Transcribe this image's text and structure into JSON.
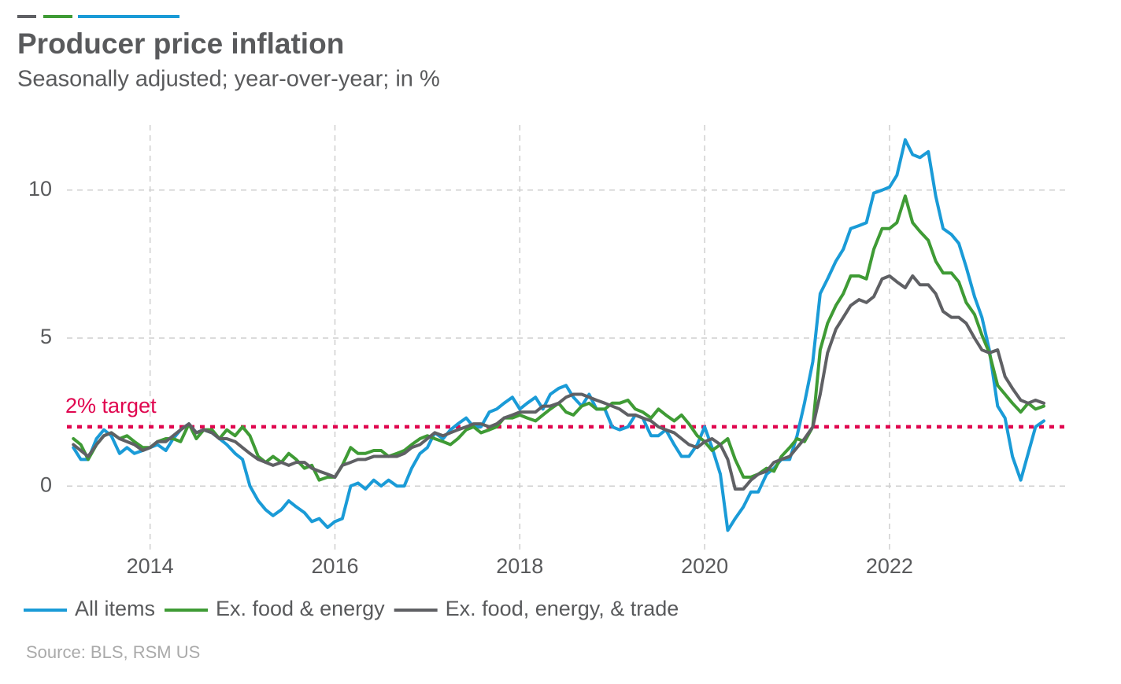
{
  "chart_data": {
    "type": "line",
    "title": "Producer price inflation",
    "subtitle": "Seasonally adjusted; year-over-year; in %",
    "source": "Source: BLS, RSM US",
    "legend": "bottom",
    "grid": true,
    "xlim": [
      2013.1,
      2023.9
    ],
    "xticks": [
      2014,
      2016,
      2018,
      2020,
      2022
    ],
    "ylim": [
      -2.2,
      12.2
    ],
    "yticks": [
      0,
      5,
      10
    ],
    "reference_line": {
      "value": 2,
      "label": "2% target",
      "color": "#e0064f"
    },
    "x": [
      2013.17,
      2013.25,
      2013.33,
      2013.42,
      2013.5,
      2013.58,
      2013.67,
      2013.75,
      2013.83,
      2013.92,
      2014.0,
      2014.08,
      2014.17,
      2014.25,
      2014.33,
      2014.42,
      2014.5,
      2014.58,
      2014.67,
      2014.75,
      2014.83,
      2014.92,
      2015.0,
      2015.08,
      2015.17,
      2015.25,
      2015.33,
      2015.42,
      2015.5,
      2015.58,
      2015.67,
      2015.75,
      2015.83,
      2015.92,
      2016.0,
      2016.08,
      2016.17,
      2016.25,
      2016.33,
      2016.42,
      2016.5,
      2016.58,
      2016.67,
      2016.75,
      2016.83,
      2016.92,
      2017.0,
      2017.08,
      2017.17,
      2017.25,
      2017.33,
      2017.42,
      2017.5,
      2017.58,
      2017.67,
      2017.75,
      2017.83,
      2017.92,
      2018.0,
      2018.08,
      2018.17,
      2018.25,
      2018.33,
      2018.42,
      2018.5,
      2018.58,
      2018.67,
      2018.75,
      2018.83,
      2018.92,
      2019.0,
      2019.08,
      2019.17,
      2019.25,
      2019.33,
      2019.42,
      2019.5,
      2019.58,
      2019.67,
      2019.75,
      2019.83,
      2019.92,
      2020.0,
      2020.08,
      2020.17,
      2020.25,
      2020.33,
      2020.42,
      2020.5,
      2020.58,
      2020.67,
      2020.75,
      2020.83,
      2020.92,
      2021.0,
      2021.08,
      2021.17,
      2021.25,
      2021.33,
      2021.42,
      2021.5,
      2021.58,
      2021.67,
      2021.75,
      2021.83,
      2021.92,
      2022.0,
      2022.08,
      2022.17,
      2022.25,
      2022.33,
      2022.42,
      2022.5,
      2022.58,
      2022.67,
      2022.75,
      2022.83,
      2022.92,
      2023.0,
      2023.08,
      2023.17,
      2023.25,
      2023.33,
      2023.42,
      2023.5,
      2023.58,
      2023.67
    ],
    "series": [
      {
        "name": "All items",
        "color": "#1a9bd7",
        "values": [
          1.3,
          0.9,
          0.9,
          1.6,
          1.9,
          1.7,
          1.1,
          1.3,
          1.1,
          1.2,
          1.3,
          1.4,
          1.2,
          1.6,
          1.9,
          2.1,
          1.8,
          1.9,
          1.8,
          1.6,
          1.4,
          1.1,
          0.9,
          0.0,
          -0.5,
          -0.8,
          -1.0,
          -0.8,
          -0.5,
          -0.7,
          -0.9,
          -1.2,
          -1.1,
          -1.4,
          -1.2,
          -1.1,
          0.0,
          0.1,
          -0.1,
          0.2,
          0.0,
          0.2,
          0.0,
          0.0,
          0.6,
          1.1,
          1.3,
          1.8,
          1.6,
          1.9,
          2.1,
          2.3,
          2.0,
          2.0,
          2.5,
          2.6,
          2.8,
          3.0,
          2.6,
          2.8,
          3.0,
          2.6,
          3.1,
          3.3,
          3.4,
          3.0,
          2.7,
          3.1,
          2.6,
          2.6,
          2.0,
          1.9,
          2.0,
          2.4,
          2.3,
          1.7,
          1.7,
          1.9,
          1.4,
          1.0,
          1.0,
          1.4,
          2.0,
          1.3,
          0.4,
          -1.5,
          -1.1,
          -0.7,
          -0.2,
          -0.2,
          0.4,
          0.6,
          0.9,
          0.9,
          1.7,
          2.8,
          4.2,
          6.5,
          7.0,
          7.6,
          8.0,
          8.7,
          8.8,
          8.9,
          9.9,
          10.0,
          10.1,
          10.5,
          11.7,
          11.2,
          11.1,
          11.3,
          9.8,
          8.7,
          8.5,
          8.2,
          7.4,
          6.4,
          5.7,
          4.6,
          2.7,
          2.3,
          1.0,
          0.2,
          1.1,
          2.0,
          2.2
        ]
      },
      {
        "name": "Ex. food & energy",
        "color": "#3f9b35",
        "values": [
          1.6,
          1.4,
          0.9,
          1.4,
          1.7,
          1.8,
          1.6,
          1.7,
          1.5,
          1.3,
          1.3,
          1.5,
          1.6,
          1.6,
          1.5,
          2.1,
          1.6,
          1.9,
          1.9,
          1.6,
          1.9,
          1.7,
          2.0,
          1.7,
          1.0,
          0.8,
          1.0,
          0.8,
          1.1,
          0.9,
          0.6,
          0.7,
          0.2,
          0.3,
          0.3,
          0.7,
          1.3,
          1.1,
          1.1,
          1.2,
          1.2,
          1.0,
          1.1,
          1.2,
          1.4,
          1.6,
          1.7,
          1.6,
          1.5,
          1.4,
          1.6,
          1.9,
          2.0,
          1.8,
          1.9,
          2.0,
          2.3,
          2.3,
          2.4,
          2.3,
          2.2,
          2.4,
          2.6,
          2.8,
          2.5,
          2.4,
          2.7,
          2.8,
          2.6,
          2.6,
          2.8,
          2.8,
          2.9,
          2.6,
          2.5,
          2.3,
          2.6,
          2.4,
          2.2,
          2.4,
          2.1,
          1.7,
          1.5,
          1.2,
          1.4,
          1.6,
          0.9,
          0.3,
          0.3,
          0.4,
          0.6,
          0.5,
          1.0,
          1.3,
          1.6,
          1.5,
          2.0,
          4.6,
          5.5,
          6.1,
          6.5,
          7.1,
          7.1,
          7.0,
          8.0,
          8.7,
          8.7,
          8.9,
          9.8,
          8.9,
          8.6,
          8.3,
          7.6,
          7.2,
          7.2,
          6.9,
          6.2,
          5.8,
          5.1,
          4.5,
          3.4,
          3.1,
          2.8,
          2.5,
          2.8,
          2.6,
          2.7
        ]
      },
      {
        "name": "Ex. food, energy, & trade",
        "color": "#5f6064",
        "values": [
          1.4,
          1.2,
          1.0,
          1.4,
          1.7,
          1.8,
          1.6,
          1.5,
          1.4,
          1.2,
          1.3,
          1.5,
          1.5,
          1.7,
          1.9,
          2.1,
          1.8,
          1.9,
          1.8,
          1.6,
          1.6,
          1.5,
          1.3,
          1.1,
          0.9,
          0.8,
          0.7,
          0.8,
          0.7,
          0.8,
          0.8,
          0.6,
          0.5,
          0.4,
          0.3,
          0.7,
          0.8,
          0.9,
          0.9,
          1.0,
          1.0,
          1.0,
          1.0,
          1.1,
          1.3,
          1.4,
          1.6,
          1.8,
          1.7,
          1.8,
          1.9,
          2.0,
          2.1,
          2.1,
          2.0,
          2.1,
          2.3,
          2.4,
          2.5,
          2.5,
          2.5,
          2.7,
          2.7,
          2.8,
          3.0,
          3.1,
          3.1,
          3.0,
          2.9,
          2.8,
          2.7,
          2.6,
          2.4,
          2.4,
          2.3,
          2.2,
          2.0,
          1.9,
          1.8,
          1.6,
          1.4,
          1.3,
          1.5,
          1.6,
          1.4,
          0.9,
          -0.1,
          -0.1,
          0.2,
          0.4,
          0.5,
          0.8,
          0.9,
          1.0,
          1.3,
          1.6,
          2.0,
          3.1,
          4.5,
          5.3,
          5.7,
          6.1,
          6.3,
          6.2,
          6.4,
          7.0,
          7.1,
          6.9,
          6.7,
          7.1,
          6.8,
          6.8,
          6.5,
          5.9,
          5.7,
          5.7,
          5.5,
          5.0,
          4.6,
          4.5,
          4.6,
          3.7,
          3.3,
          2.9,
          2.8,
          2.9,
          2.8
        ]
      }
    ]
  }
}
